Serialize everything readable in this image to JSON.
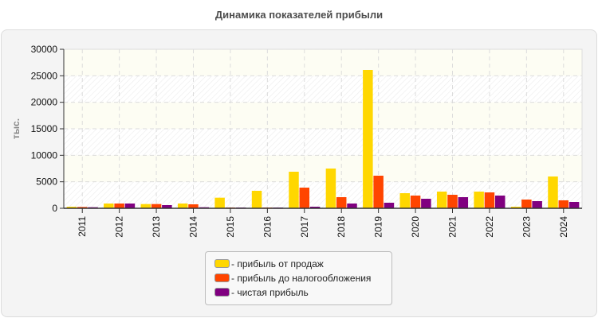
{
  "header": {
    "title": "Динамика показателей прибыли"
  },
  "chart_data": {
    "type": "bar",
    "title": "Динамика показателей прибыли",
    "xlabel": "",
    "ylabel": "тыс.",
    "ylim": [
      0,
      30000
    ],
    "yticks": [
      0,
      5000,
      10000,
      15000,
      20000,
      25000,
      30000
    ],
    "grid": true,
    "legend_position": "bottom",
    "categories": [
      "2011",
      "2012",
      "2013",
      "2014",
      "2015",
      "2016",
      "2017",
      "2018",
      "2019",
      "2020",
      "2021",
      "2022",
      "2023",
      "2024"
    ],
    "series": [
      {
        "name": "прибыль от продаж",
        "color": "#ffd700",
        "values": [
          300,
          900,
          800,
          900,
          2000,
          3300,
          6900,
          7500,
          26100,
          2850,
          3150,
          3150,
          300,
          6000
        ]
      },
      {
        "name": "прибыль до налогообложения",
        "color": "#ff4500",
        "values": [
          250,
          900,
          800,
          750,
          150,
          150,
          3900,
          2100,
          6150,
          2400,
          2550,
          3000,
          1650,
          1500
        ]
      },
      {
        "name": "чистая прибыль",
        "color": "#800080",
        "values": [
          200,
          900,
          600,
          200,
          150,
          150,
          300,
          900,
          1050,
          1800,
          2100,
          2400,
          1350,
          1200
        ]
      }
    ]
  },
  "legend": {
    "items": [
      {
        "label": "- прибыль от продаж",
        "color": "#ffd700"
      },
      {
        "label": "- прибыль до налогообложения",
        "color": "#ff4500"
      },
      {
        "label": "- чистая прибыль",
        "color": "#800080"
      }
    ]
  }
}
